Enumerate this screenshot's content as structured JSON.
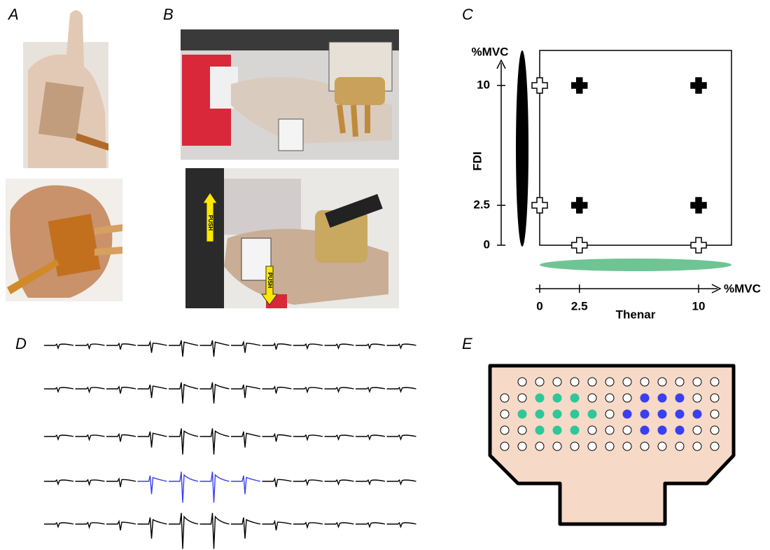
{
  "panels": {
    "a": "A",
    "b": "B",
    "c": "C",
    "d": "D",
    "e": "E"
  },
  "photo_b": {
    "push_top": "PUSH",
    "push_bottom": "PUSH"
  },
  "chart_data": {
    "type": "scatter",
    "y_axis_unit": "%MVC",
    "y_label": "FDI",
    "x_axis_unit": "%MVC",
    "x_label": "Thenar",
    "xlim": [
      0,
      11
    ],
    "ylim": [
      0,
      11
    ],
    "xticks": [
      0,
      2.5,
      10
    ],
    "yticks": [
      0,
      2.5,
      10
    ],
    "series": [
      {
        "color": "#ffffff",
        "x": [
          0,
          0,
          2.5,
          10
        ],
        "values": [
          10,
          2.5,
          0,
          0
        ]
      },
      {
        "color": "#000000",
        "x": [
          2.5,
          10,
          2.5,
          10
        ],
        "values": [
          10,
          10,
          2.5,
          2.5
        ]
      }
    ]
  }
}
